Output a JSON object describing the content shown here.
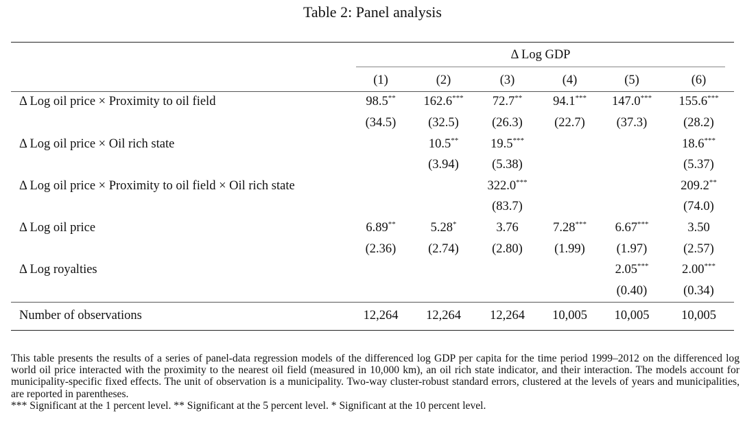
{
  "title": "Table 2: Panel analysis",
  "header": {
    "group_label": "Δ Log GDP",
    "columns": [
      "(1)",
      "(2)",
      "(3)",
      "(4)",
      "(5)",
      "(6)"
    ]
  },
  "rows": [
    {
      "label": "Δ Log oil price × Proximity to oil field",
      "coef": [
        {
          "v": "98.5",
          "s": "**"
        },
        {
          "v": "162.6",
          "s": "***"
        },
        {
          "v": "72.7",
          "s": "**"
        },
        {
          "v": "94.1",
          "s": "***"
        },
        {
          "v": "147.0",
          "s": "***"
        },
        {
          "v": "155.6",
          "s": "***"
        }
      ],
      "se": [
        "(34.5)",
        "(32.5)",
        "(26.3)",
        "(22.7)",
        "(37.3)",
        "(28.2)"
      ]
    },
    {
      "label": "Δ Log oil price × Oil rich state",
      "coef": [
        {
          "v": "",
          "s": ""
        },
        {
          "v": "10.5",
          "s": "**"
        },
        {
          "v": "19.5",
          "s": "***"
        },
        {
          "v": "",
          "s": ""
        },
        {
          "v": "",
          "s": ""
        },
        {
          "v": "18.6",
          "s": "***"
        }
      ],
      "se": [
        "",
        "(3.94)",
        "(5.38)",
        "",
        "",
        "(5.37)"
      ]
    },
    {
      "label": "Δ Log oil price × Proximity to oil field × Oil rich state",
      "coef": [
        {
          "v": "",
          "s": ""
        },
        {
          "v": "",
          "s": ""
        },
        {
          "v": "322.0",
          "s": "***"
        },
        {
          "v": "",
          "s": ""
        },
        {
          "v": "",
          "s": ""
        },
        {
          "v": "209.2",
          "s": "**"
        }
      ],
      "se": [
        "",
        "",
        "(83.7)",
        "",
        "",
        "(74.0)"
      ]
    },
    {
      "label": "Δ Log oil price",
      "coef": [
        {
          "v": "6.89",
          "s": "**"
        },
        {
          "v": "5.28",
          "s": "*"
        },
        {
          "v": "3.76",
          "s": ""
        },
        {
          "v": "7.28",
          "s": "***"
        },
        {
          "v": "6.67",
          "s": "***"
        },
        {
          "v": "3.50",
          "s": ""
        }
      ],
      "se": [
        "(2.36)",
        "(2.74)",
        "(2.80)",
        "(1.99)",
        "(1.97)",
        "(2.57)"
      ]
    },
    {
      "label": "Δ Log royalties",
      "coef": [
        {
          "v": "",
          "s": ""
        },
        {
          "v": "",
          "s": ""
        },
        {
          "v": "",
          "s": ""
        },
        {
          "v": "",
          "s": ""
        },
        {
          "v": "2.05",
          "s": "***"
        },
        {
          "v": "2.00",
          "s": "***"
        }
      ],
      "se": [
        "",
        "",
        "",
        "",
        "(0.40)",
        "(0.34)"
      ]
    }
  ],
  "observations": {
    "label": "Number of observations",
    "values": [
      "12,264",
      "12,264",
      "12,264",
      "10,005",
      "10,005",
      "10,005"
    ]
  },
  "note": {
    "text": "This table presents the results of a series of panel-data regression models of the differenced log GDP per capita for the time period 1999–2012 on the differenced log world oil price interacted with the proximity to the nearest oil field (measured in 10,000 km), an oil rich state indicator, and their interaction. The models account for municipality-specific fixed effects. The unit of observation is a municipality. Two-way cluster-robust standard errors, clustered at the levels of years and municipalities, are reported in parentheses.",
    "significance": "*** Significant at the 1 percent level. ** Significant at the 5 percent level. * Significant at the 10 percent level."
  }
}
